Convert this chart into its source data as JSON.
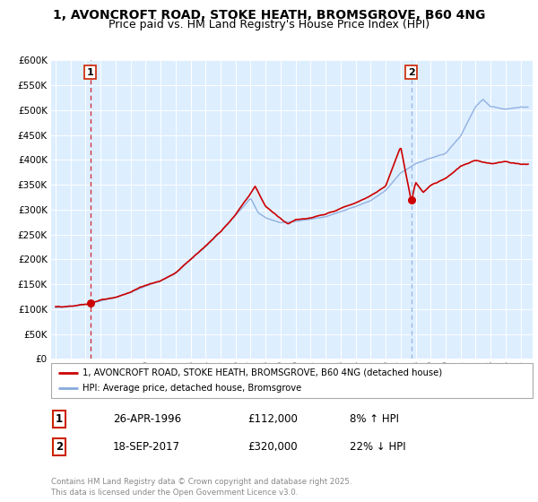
{
  "title": "1, AVONCROFT ROAD, STOKE HEATH, BROMSGROVE, B60 4NG",
  "subtitle": "Price paid vs. HM Land Registry's House Price Index (HPI)",
  "ylim": [
    0,
    600000
  ],
  "yticks": [
    0,
    50000,
    100000,
    150000,
    200000,
    250000,
    300000,
    350000,
    400000,
    450000,
    500000,
    550000,
    600000
  ],
  "xlim_start": 1993.7,
  "xlim_end": 2025.8,
  "bg_color": "#ddeeff",
  "red_line_color": "#cc0000",
  "blue_line_color": "#88aadd",
  "grid_color": "#ffffff",
  "sale1_x": 1996.32,
  "sale1_y": 112000,
  "sale2_x": 2017.72,
  "sale2_y": 320000,
  "sale1_label": "1",
  "sale2_label": "2",
  "legend_line1": "1, AVONCROFT ROAD, STOKE HEATH, BROMSGROVE, B60 4NG (detached house)",
  "legend_line2": "HPI: Average price, detached house, Bromsgrove",
  "table_row1": [
    "1",
    "26-APR-1996",
    "£112,000",
    "8% ↑ HPI"
  ],
  "table_row2": [
    "2",
    "18-SEP-2017",
    "£320,000",
    "22% ↓ HPI"
  ],
  "footer": "Contains HM Land Registry data © Crown copyright and database right 2025.\nThis data is licensed under the Open Government Licence v3.0.",
  "title_fontsize": 10,
  "subtitle_fontsize": 9,
  "hpi_waypoints_x": [
    1994,
    1995,
    1996,
    1997,
    1998,
    1999,
    2000,
    2001,
    2002,
    2003,
    2004,
    2005,
    2006,
    2007,
    2007.5,
    2008,
    2009,
    2010,
    2011,
    2012,
    2013,
    2014,
    2015,
    2016,
    2017,
    2018,
    2019,
    2020,
    2021,
    2022,
    2022.5,
    2023,
    2024,
    2025
  ],
  "hpi_waypoints_y": [
    103000,
    106000,
    110000,
    118000,
    125000,
    135000,
    148000,
    158000,
    172000,
    200000,
    225000,
    255000,
    290000,
    325000,
    295000,
    285000,
    275000,
    278000,
    283000,
    288000,
    298000,
    308000,
    320000,
    340000,
    375000,
    395000,
    405000,
    415000,
    450000,
    510000,
    525000,
    510000,
    505000,
    510000
  ],
  "prop_waypoints_x": [
    1994,
    1995,
    1996,
    1996.32,
    1997,
    1998,
    1999,
    2000,
    2001,
    2002,
    2003,
    2004,
    2005,
    2006,
    2007,
    2007.3,
    2008,
    2009,
    2009.5,
    2010,
    2011,
    2012,
    2013,
    2014,
    2015,
    2016,
    2017,
    2017.72,
    2018,
    2018.5,
    2019,
    2020,
    2021,
    2022,
    2023,
    2024,
    2025
  ],
  "prop_waypoints_y": [
    105000,
    108000,
    111000,
    112000,
    120000,
    128000,
    138000,
    152000,
    162000,
    178000,
    205000,
    232000,
    262000,
    298000,
    340000,
    355000,
    315000,
    292000,
    280000,
    288000,
    290000,
    296000,
    308000,
    318000,
    332000,
    352000,
    430000,
    320000,
    360000,
    340000,
    355000,
    370000,
    395000,
    405000,
    400000,
    405000,
    400000
  ]
}
